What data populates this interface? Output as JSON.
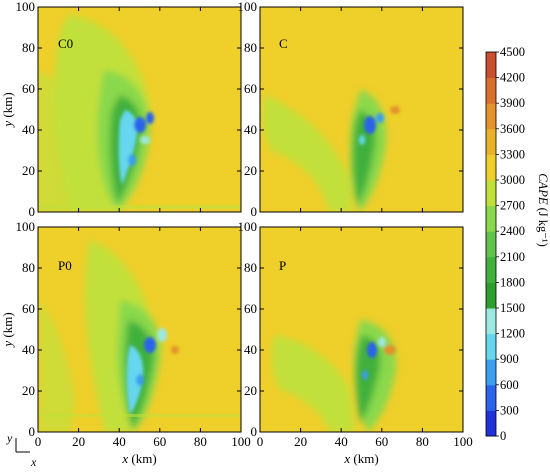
{
  "chart_data": {
    "type": "heatmap",
    "panels": [
      {
        "label": "C0",
        "xlabel": "",
        "ylabel": "y (km)",
        "xlim": [
          0,
          100
        ],
        "ylim": [
          0,
          100
        ]
      },
      {
        "label": "C",
        "xlabel": "",
        "ylabel": "",
        "xlim": [
          0,
          100
        ],
        "ylim": [
          0,
          100
        ]
      },
      {
        "label": "P0",
        "xlabel": "x (km)",
        "ylabel": "y (km)",
        "xlim": [
          0,
          100
        ],
        "ylim": [
          0,
          100
        ]
      },
      {
        "label": "P",
        "xlabel": "x (km)",
        "ylabel": "",
        "xlim": [
          0,
          100
        ],
        "ylim": [
          0,
          100
        ]
      }
    ],
    "xticks": [
      0,
      20,
      40,
      60,
      80,
      100
    ],
    "yticks": [
      0,
      20,
      40,
      60,
      80,
      100
    ],
    "xlabel_prefix": "x",
    "ylabel_prefix": "y",
    "axis_unit": " (km)",
    "colorbar": {
      "label_italic": "CAPE",
      "label_unit": " (J kg⁻¹)",
      "ticks": [
        0,
        300,
        600,
        900,
        1200,
        1500,
        1800,
        2100,
        2400,
        2700,
        3000,
        3300,
        3600,
        3900,
        4200,
        4500
      ],
      "colors": [
        "#1f33d9",
        "#2b63ea",
        "#3b9ef0",
        "#66d7ef",
        "#9de8e0",
        "#2f9e2f",
        "#3fb03c",
        "#5fc24a",
        "#8ad84c",
        "#c2e03a",
        "#efcf2a",
        "#eab22a",
        "#e3922c",
        "#d8712e",
        "#c94f2f"
      ]
    },
    "orientation": {
      "y": "y",
      "x": "x"
    }
  }
}
